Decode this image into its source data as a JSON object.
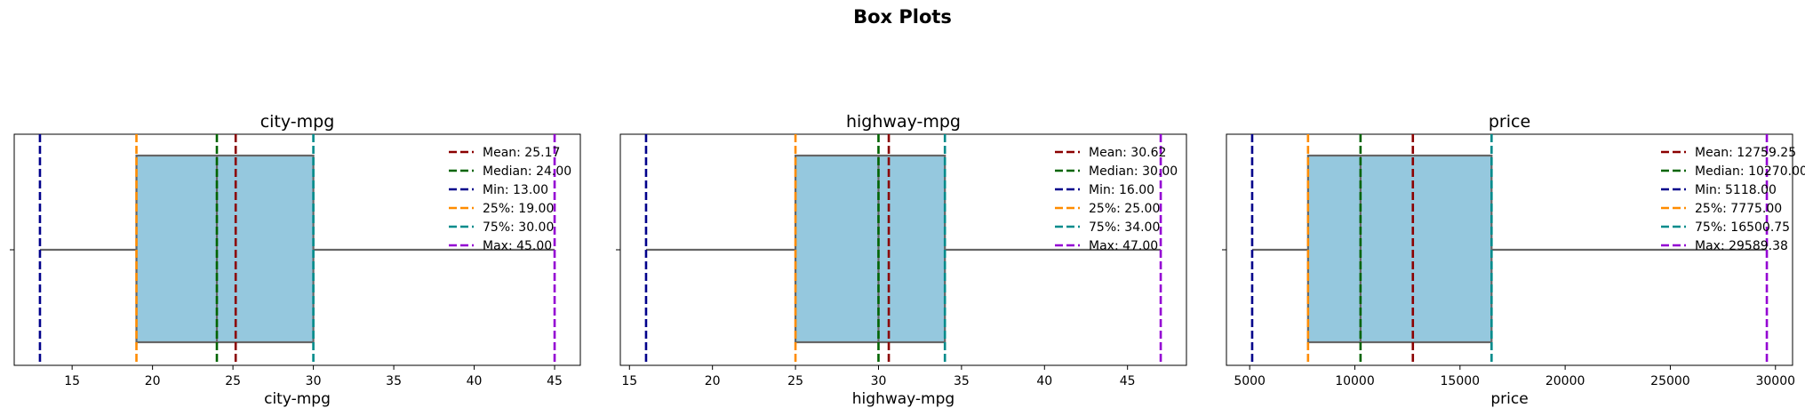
{
  "chart_data": {
    "title": "Box Plots",
    "panels": [
      {
        "type": "box",
        "title": "city-mpg",
        "xlabel": "city-mpg",
        "xlim": [
          11.4,
          46.6
        ],
        "xticks": [
          15,
          20,
          25,
          30,
          35,
          40,
          45
        ],
        "box": {
          "min": 13.0,
          "q1": 19.0,
          "median": 24.0,
          "q3": 30.0,
          "max": 45.0
        },
        "lines": [
          {
            "key": "mean",
            "label": "Mean: 25.17",
            "value": 25.17,
            "color": "#8b0000"
          },
          {
            "key": "median",
            "label": "Median: 24.00",
            "value": 24.0,
            "color": "#006400"
          },
          {
            "key": "min",
            "label": "Min: 13.00",
            "value": 13.0,
            "color": "#00008b"
          },
          {
            "key": "p25",
            "label": "25%: 19.00",
            "value": 19.0,
            "color": "#ff8c00"
          },
          {
            "key": "p75",
            "label": "75%: 30.00",
            "value": 30.0,
            "color": "#008b8b"
          },
          {
            "key": "max",
            "label": "Max: 45.00",
            "value": 45.0,
            "color": "#9400d3"
          }
        ]
      },
      {
        "type": "box",
        "title": "highway-mpg",
        "xlabel": "highway-mpg",
        "xlim": [
          14.45,
          48.55
        ],
        "xticks": [
          15,
          20,
          25,
          30,
          35,
          40,
          45
        ],
        "box": {
          "min": 16.0,
          "q1": 25.0,
          "median": 30.0,
          "q3": 34.0,
          "max": 47.0
        },
        "lines": [
          {
            "key": "mean",
            "label": "Mean: 30.62",
            "value": 30.62,
            "color": "#8b0000"
          },
          {
            "key": "median",
            "label": "Median: 30.00",
            "value": 30.0,
            "color": "#006400"
          },
          {
            "key": "min",
            "label": "Min: 16.00",
            "value": 16.0,
            "color": "#00008b"
          },
          {
            "key": "p25",
            "label": "25%: 25.00",
            "value": 25.0,
            "color": "#ff8c00"
          },
          {
            "key": "p75",
            "label": "75%: 34.00",
            "value": 34.0,
            "color": "#008b8b"
          },
          {
            "key": "max",
            "label": "Max: 47.00",
            "value": 47.0,
            "color": "#9400d3"
          }
        ]
      },
      {
        "type": "box",
        "title": "price",
        "xlabel": "price",
        "xlim": [
          3894.4,
          30812.9
        ],
        "xticks": [
          5000,
          10000,
          15000,
          20000,
          25000,
          30000
        ],
        "box": {
          "min": 5118.0,
          "q1": 7775.0,
          "median": 10270.0,
          "q3": 16500.75,
          "max": 29589.38
        },
        "lines": [
          {
            "key": "mean",
            "label": "Mean: 12759.25",
            "value": 12759.25,
            "color": "#8b0000"
          },
          {
            "key": "median",
            "label": "Median: 10270.00",
            "value": 10270.0,
            "color": "#006400"
          },
          {
            "key": "min",
            "label": "Min: 5118.00",
            "value": 5118.0,
            "color": "#00008b"
          },
          {
            "key": "p25",
            "label": "25%: 7775.00",
            "value": 7775.0,
            "color": "#ff8c00"
          },
          {
            "key": "p75",
            "label": "75%: 16500.75",
            "value": 16500.75,
            "color": "#008b8b"
          },
          {
            "key": "max",
            "label": "Max: 29589.38",
            "value": 29589.38,
            "color": "#9400d3"
          }
        ]
      }
    ],
    "box_fill": "#95c8de",
    "box_edge": "#666666",
    "legend_position": "upper right",
    "grid": false
  }
}
